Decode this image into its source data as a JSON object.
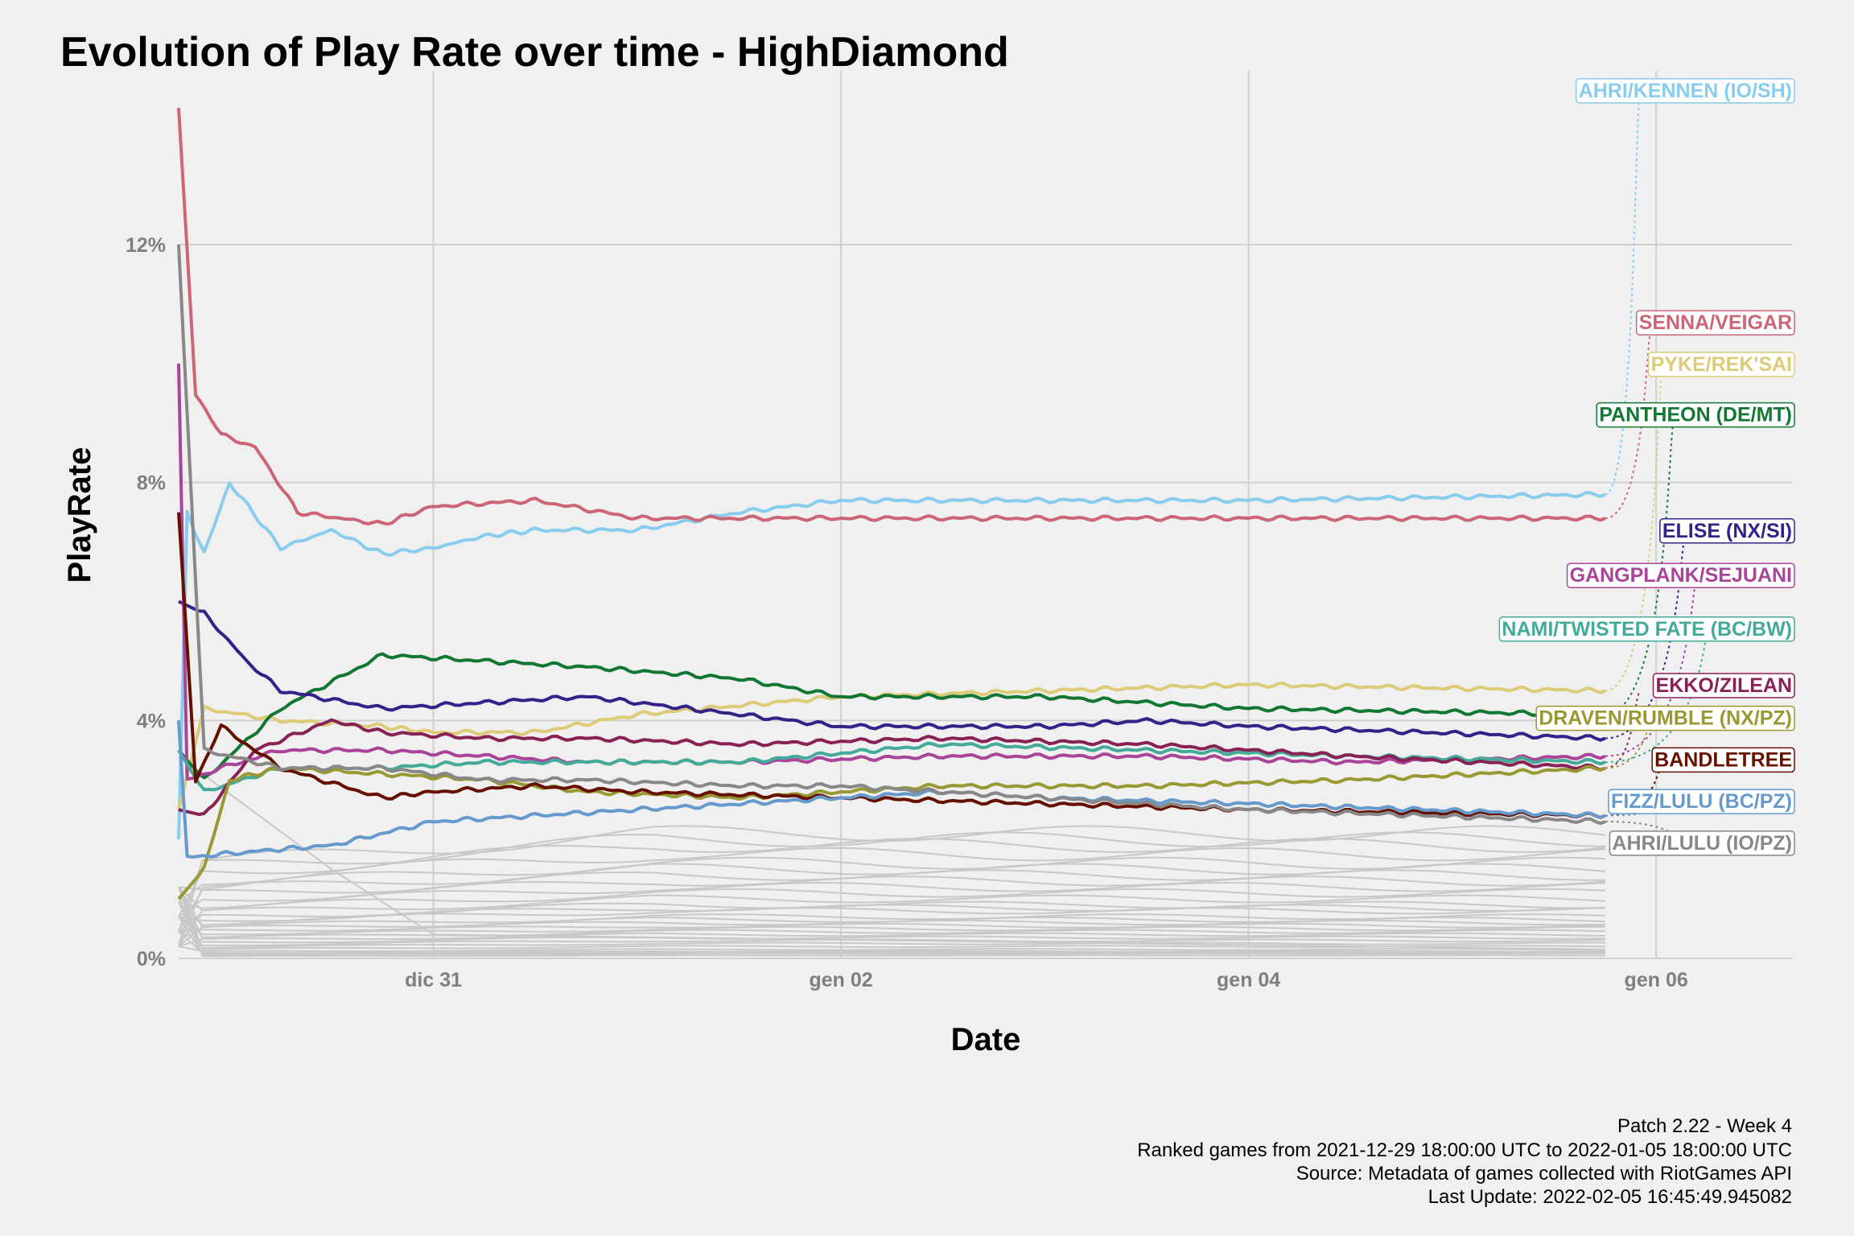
{
  "chart_data": {
    "type": "line",
    "title": "Evolution of Play Rate over time - HighDiamond",
    "xlabel": "Date",
    "ylabel": "PlayRate",
    "x_ticks": [
      "dic 31",
      "gen 02",
      "gen 04",
      "gen 06"
    ],
    "y_ticks": [
      "0%",
      "4%",
      "8%",
      "12%"
    ],
    "ylim": [
      0,
      14.3
    ],
    "xlim": [
      "2021-12-29T18:00",
      "2022-01-06T16:00"
    ],
    "x_unit": "date",
    "y_unit": "percent",
    "grid": true,
    "legend": "direct labels at right",
    "caption": [
      "Patch 2.22 - Week 4",
      "Ranked games from 2021-12-29 18:00:00 UTC to 2022-01-05 18:00:00 UTC",
      "Source: Metadata of games collected with RiotGames API",
      "Last Update: 2022-02-05 16:45:49.945082"
    ],
    "series": [
      {
        "name": "AHRI/KENNEN (IO/SH)",
        "color": "#88CCEE",
        "points": [
          [
            "2021-12-29T18:00",
            2.0
          ],
          [
            "2021-12-29T19:00",
            7.5
          ],
          [
            "2021-12-29T21:00",
            6.8
          ],
          [
            "2021-12-30T00:00",
            8.0
          ],
          [
            "2021-12-30T06:00",
            6.9
          ],
          [
            "2021-12-30T12:00",
            7.2
          ],
          [
            "2021-12-30T18:00",
            6.8
          ],
          [
            "2021-12-31T00:00",
            6.9
          ],
          [
            "2021-12-31T06:00",
            7.1
          ],
          [
            "2021-12-31T12:00",
            7.2
          ],
          [
            "2022-01-01T00:00",
            7.2
          ],
          [
            "2022-01-01T12:00",
            7.5
          ],
          [
            "2022-01-02T00:00",
            7.7
          ],
          [
            "2022-01-03T00:00",
            7.7
          ],
          [
            "2022-01-04T00:00",
            7.7
          ],
          [
            "2022-01-05T18:00",
            7.8
          ]
        ]
      },
      {
        "name": "SENNA/VEIGAR",
        "color": "#CC6677",
        "points": [
          [
            "2021-12-29T18:00",
            14.3
          ],
          [
            "2021-12-29T20:00",
            9.5
          ],
          [
            "2021-12-29T23:00",
            8.8
          ],
          [
            "2021-12-30T03:00",
            8.6
          ],
          [
            "2021-12-30T08:00",
            7.5
          ],
          [
            "2021-12-30T18:00",
            7.3
          ],
          [
            "2021-12-31T00:00",
            7.6
          ],
          [
            "2021-12-31T12:00",
            7.7
          ],
          [
            "2022-01-01T00:00",
            7.4
          ],
          [
            "2022-01-02T00:00",
            7.4
          ],
          [
            "2022-01-03T00:00",
            7.4
          ],
          [
            "2022-01-04T00:00",
            7.4
          ],
          [
            "2022-01-05T18:00",
            7.4
          ]
        ]
      },
      {
        "name": "PYKE/REK'SAI",
        "color": "#DDCC77",
        "points": [
          [
            "2021-12-29T18:00",
            2.5
          ],
          [
            "2021-12-29T21:00",
            4.2
          ],
          [
            "2021-12-30T06:00",
            4.0
          ],
          [
            "2021-12-30T18:00",
            3.9
          ],
          [
            "2021-12-31T00:00",
            3.8
          ],
          [
            "2021-12-31T12:00",
            3.8
          ],
          [
            "2022-01-01T00:00",
            4.1
          ],
          [
            "2022-01-02T00:00",
            4.4
          ],
          [
            "2022-01-03T00:00",
            4.5
          ],
          [
            "2022-01-04T00:00",
            4.6
          ],
          [
            "2022-01-05T18:00",
            4.5
          ]
        ]
      },
      {
        "name": "PANTHEON (DE/MT)",
        "color": "#117733",
        "points": [
          [
            "2021-12-29T18:00",
            3.5
          ],
          [
            "2021-12-29T21:00",
            3.0
          ],
          [
            "2021-12-30T06:00",
            4.2
          ],
          [
            "2021-12-30T18:00",
            5.1
          ],
          [
            "2021-12-31T06:00",
            5.0
          ],
          [
            "2021-12-31T18:00",
            4.9
          ],
          [
            "2022-01-01T12:00",
            4.7
          ],
          [
            "2022-01-02T00:00",
            4.4
          ],
          [
            "2022-01-03T00:00",
            4.4
          ],
          [
            "2022-01-04T00:00",
            4.2
          ],
          [
            "2022-01-05T18:00",
            4.1
          ]
        ]
      },
      {
        "name": "ELISE (NX/SI)",
        "color": "#332288",
        "points": [
          [
            "2021-12-29T18:00",
            6.0
          ],
          [
            "2021-12-29T21:00",
            5.8
          ],
          [
            "2021-12-30T02:00",
            5.0
          ],
          [
            "2021-12-30T06:00",
            4.5
          ],
          [
            "2021-12-30T18:00",
            4.2
          ],
          [
            "2021-12-31T06:00",
            4.3
          ],
          [
            "2021-12-31T18:00",
            4.4
          ],
          [
            "2022-01-01T12:00",
            4.1
          ],
          [
            "2022-01-02T00:00",
            3.9
          ],
          [
            "2022-01-03T00:00",
            3.9
          ],
          [
            "2022-01-03T12:00",
            4.0
          ],
          [
            "2022-01-04T00:00",
            3.9
          ],
          [
            "2022-01-05T18:00",
            3.7
          ]
        ]
      },
      {
        "name": "GANGPLANK/SEJUANI",
        "color": "#AA4499",
        "points": [
          [
            "2021-12-29T18:00",
            10.0
          ],
          [
            "2021-12-29T19:00",
            3.0
          ],
          [
            "2021-12-29T23:00",
            3.2
          ],
          [
            "2021-12-30T06:00",
            3.5
          ],
          [
            "2021-12-30T18:00",
            3.5
          ],
          [
            "2021-12-31T06:00",
            3.4
          ],
          [
            "2021-12-31T18:00",
            3.3
          ],
          [
            "2022-01-01T12:00",
            3.3
          ],
          [
            "2022-01-02T12:00",
            3.4
          ],
          [
            "2022-01-03T12:00",
            3.4
          ],
          [
            "2022-01-04T12:00",
            3.3
          ],
          [
            "2022-01-05T18:00",
            3.4
          ]
        ]
      },
      {
        "name": "NAMI/TWISTED FATE (BC/BW)",
        "color": "#44AA99",
        "points": [
          [
            "2021-12-29T18:00",
            3.5
          ],
          [
            "2021-12-29T21:00",
            2.8
          ],
          [
            "2021-12-30T06:00",
            3.2
          ],
          [
            "2021-12-30T18:00",
            3.2
          ],
          [
            "2021-12-31T06:00",
            3.3
          ],
          [
            "2021-12-31T18:00",
            3.3
          ],
          [
            "2022-01-01T12:00",
            3.3
          ],
          [
            "2022-01-02T12:00",
            3.6
          ],
          [
            "2022-01-03T12:00",
            3.5
          ],
          [
            "2022-01-04T12:00",
            3.4
          ],
          [
            "2022-01-05T18:00",
            3.3
          ]
        ]
      },
      {
        "name": "EKKO/ZILEAN",
        "color": "#882255",
        "points": [
          [
            "2021-12-29T18:00",
            2.5
          ],
          [
            "2021-12-29T21:00",
            2.4
          ],
          [
            "2021-12-30T03:00",
            3.5
          ],
          [
            "2021-12-30T12:00",
            4.0
          ],
          [
            "2021-12-30T18:00",
            3.8
          ],
          [
            "2021-12-31T06:00",
            3.7
          ],
          [
            "2021-12-31T18:00",
            3.7
          ],
          [
            "2022-01-01T12:00",
            3.6
          ],
          [
            "2022-01-02T12:00",
            3.7
          ],
          [
            "2022-01-03T12:00",
            3.6
          ],
          [
            "2022-01-04T12:00",
            3.4
          ],
          [
            "2022-01-05T18:00",
            3.2
          ]
        ]
      },
      {
        "name": "DRAVEN/RUMBLE (NX/PZ)",
        "color": "#999933",
        "points": [
          [
            "2021-12-29T18:00",
            1.0
          ],
          [
            "2021-12-29T21:00",
            1.5
          ],
          [
            "2021-12-30T00:00",
            3.0
          ],
          [
            "2021-12-30T06:00",
            3.2
          ],
          [
            "2021-12-30T18:00",
            3.1
          ],
          [
            "2021-12-31T06:00",
            3.0
          ],
          [
            "2021-12-31T18:00",
            2.8
          ],
          [
            "2022-01-01T12:00",
            2.7
          ],
          [
            "2022-01-02T12:00",
            2.9
          ],
          [
            "2022-01-03T12:00",
            2.9
          ],
          [
            "2022-01-04T12:00",
            3.0
          ],
          [
            "2022-01-05T18:00",
            3.2
          ]
        ]
      },
      {
        "name": "BANDLETREE",
        "color": "#661100",
        "points": [
          [
            "2021-12-29T18:00",
            7.5
          ],
          [
            "2021-12-29T20:00",
            3.0
          ],
          [
            "2021-12-29T23:00",
            3.9
          ],
          [
            "2021-12-30T06:00",
            3.2
          ],
          [
            "2021-12-30T18:00",
            2.7
          ],
          [
            "2021-12-31T00:00",
            2.8
          ],
          [
            "2021-12-31T12:00",
            2.9
          ],
          [
            "2022-01-01T00:00",
            2.8
          ],
          [
            "2022-01-02T00:00",
            2.7
          ],
          [
            "2022-01-03T00:00",
            2.6
          ],
          [
            "2022-01-04T00:00",
            2.5
          ],
          [
            "2022-01-05T18:00",
            2.4
          ]
        ]
      },
      {
        "name": "FIZZ/LULU (BC/PZ)",
        "color": "#6699CC",
        "points": [
          [
            "2021-12-29T18:00",
            4.0
          ],
          [
            "2021-12-29T19:00",
            1.7
          ],
          [
            "2021-12-30T03:00",
            1.8
          ],
          [
            "2021-12-30T12:00",
            1.9
          ],
          [
            "2021-12-31T00:00",
            2.3
          ],
          [
            "2021-12-31T12:00",
            2.4
          ],
          [
            "2022-01-01T00:00",
            2.5
          ],
          [
            "2022-01-01T12:00",
            2.6
          ],
          [
            "2022-01-02T00:00",
            2.7
          ],
          [
            "2022-01-02T12:00",
            2.8
          ],
          [
            "2022-01-03T00:00",
            2.7
          ],
          [
            "2022-01-04T00:00",
            2.6
          ],
          [
            "2022-01-05T18:00",
            2.4
          ]
        ]
      },
      {
        "name": "AHRI/LULU (IO/PZ)",
        "color": "#888888",
        "points": [
          [
            "2021-12-29T18:00",
            12.0
          ],
          [
            "2021-12-29T21:00",
            3.5
          ],
          [
            "2021-12-30T06:00",
            3.2
          ],
          [
            "2021-12-30T18:00",
            3.2
          ],
          [
            "2021-12-31T06:00",
            3.0
          ],
          [
            "2021-12-31T18:00",
            3.0
          ],
          [
            "2022-01-01T12:00",
            2.9
          ],
          [
            "2022-01-02T00:00",
            2.9
          ],
          [
            "2022-01-03T00:00",
            2.7
          ],
          [
            "2022-01-04T00:00",
            2.5
          ],
          [
            "2022-01-05T18:00",
            2.3
          ]
        ]
      }
    ],
    "labels": [
      {
        "name": "AHRI/KENNEN (IO/SH)",
        "y": 14.6
      },
      {
        "name": "SENNA/VEIGAR",
        "y": 10.7
      },
      {
        "name": "PYKE/REK'SAI",
        "y": 10.0
      },
      {
        "name": "PANTHEON (DE/MT)",
        "y": 9.15
      },
      {
        "name": "ELISE (NX/SI)",
        "y": 7.2
      },
      {
        "name": "GANGPLANK/SEJUANI",
        "y": 6.45
      },
      {
        "name": "NAMI/TWISTED FATE (BC/BW)",
        "y": 5.55
      },
      {
        "name": "EKKO/ZILEAN",
        "y": 4.6
      },
      {
        "name": "DRAVEN/RUMBLE (NX/PZ)",
        "y": 4.05
      },
      {
        "name": "BANDLETREE",
        "y": 3.35
      },
      {
        "name": "FIZZ/LULU (BC/PZ)",
        "y": 2.65
      },
      {
        "name": "AHRI/LULU (IO/PZ)",
        "y": 1.95
      }
    ],
    "background_series": {
      "color": "#c8c8c8",
      "end_values": [
        2.1,
        2.0,
        1.9,
        1.75,
        1.6,
        1.5,
        1.4,
        1.3,
        1.2,
        1.1,
        1.0,
        0.9,
        0.85,
        0.8,
        0.7,
        0.65,
        0.6,
        0.55,
        0.5,
        0.45,
        0.4,
        0.35,
        0.3,
        0.25,
        0.2,
        0.15,
        0.12,
        0.1,
        0.08,
        0.05
      ]
    }
  }
}
